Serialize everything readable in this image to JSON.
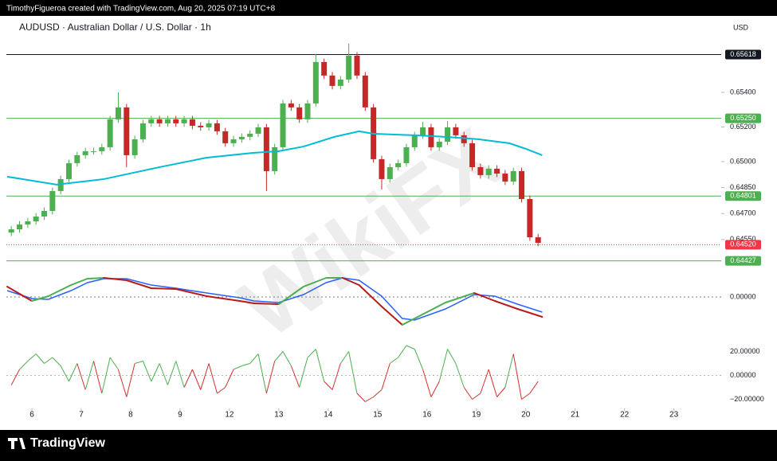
{
  "chart_data": {
    "type": "candlestick",
    "header": "TimothyFigueroa created with TradingView.com, Aug 20, 2025 07:19 UTC+8",
    "title": "AUDUSD · Australian Dollar / U.S. Dollar · 1h",
    "currency": "USD",
    "footer": "TradingView",
    "watermark": "WikiFX",
    "up_color": "#4caf50",
    "down_color": "#c62828",
    "x": [
      -10,
      -6,
      -2,
      2,
      6,
      10,
      14,
      18,
      22,
      26,
      30,
      34,
      38,
      42,
      46,
      50,
      54,
      58,
      62,
      66,
      70,
      74,
      78,
      82,
      86,
      90,
      94,
      98,
      102,
      106,
      110,
      114,
      118,
      122,
      126,
      130,
      134,
      138,
      142,
      146,
      150,
      154,
      158,
      162,
      166,
      170,
      174,
      178,
      182,
      186,
      190,
      194,
      198,
      202,
      206,
      210,
      214,
      218,
      222,
      226,
      230,
      234,
      238,
      242,
      246
    ],
    "open": [
      0.6459,
      0.64609,
      0.64637,
      0.64655,
      0.64683,
      0.64715,
      0.6483,
      0.64899,
      0.64991,
      0.65037,
      0.6506,
      0.6506,
      0.65083,
      0.65244,
      0.65313,
      0.65037,
      0.65129,
      0.65221,
      0.65244,
      0.65221,
      0.65244,
      0.65221,
      0.65244,
      0.65207,
      0.65198,
      0.65221,
      0.65175,
      0.65106,
      0.65129,
      0.65143,
      0.65161,
      0.65198,
      0.64945,
      0.65083,
      0.65336,
      0.65313,
      0.65244,
      0.65336,
      0.65575,
      0.65497,
      0.65437,
      0.65474,
      0.65612,
      0.65497,
      0.65313,
      0.65014,
      0.64899,
      0.64968,
      0.64991,
      0.65083,
      0.65152,
      0.65198,
      0.65083,
      0.65115,
      0.65198,
      0.65152,
      0.65106,
      0.64968,
      0.64922,
      0.64959,
      0.64931,
      0.64885,
      0.64945,
      0.64784,
      0.64563
    ],
    "high": [
      0.64629,
      0.64657,
      0.64675,
      0.64703,
      0.64735,
      0.6485,
      0.64919,
      0.65011,
      0.65057,
      0.6508,
      0.6508,
      0.65103,
      0.65264,
      0.654,
      0.65333,
      0.65149,
      0.65241,
      0.65264,
      0.65264,
      0.65264,
      0.65264,
      0.65264,
      0.65264,
      0.65227,
      0.65241,
      0.65241,
      0.65195,
      0.65149,
      0.65163,
      0.65181,
      0.65218,
      0.65218,
      0.65103,
      0.65356,
      0.65356,
      0.65333,
      0.65356,
      0.65621,
      0.65595,
      0.65517,
      0.65494,
      0.65681,
      0.65632,
      0.65517,
      0.65333,
      0.65034,
      0.64988,
      0.65011,
      0.65103,
      0.65172,
      0.6523,
      0.65218,
      0.65135,
      0.65235,
      0.65218,
      0.65172,
      0.65126,
      0.64988,
      0.64979,
      0.64979,
      0.64951,
      0.64965,
      0.64965,
      0.64804,
      0.64583
    ],
    "low": [
      0.6457,
      0.64589,
      0.64617,
      0.64635,
      0.64663,
      0.64695,
      0.6481,
      0.64879,
      0.64971,
      0.65017,
      0.6504,
      0.6504,
      0.65063,
      0.65224,
      0.64968,
      0.65017,
      0.65109,
      0.65201,
      0.65201,
      0.65201,
      0.65201,
      0.65201,
      0.65187,
      0.65178,
      0.65178,
      0.65155,
      0.65086,
      0.65086,
      0.65109,
      0.65123,
      0.65141,
      0.6483,
      0.64925,
      0.65063,
      0.65293,
      0.65224,
      0.65224,
      0.65316,
      0.65477,
      0.65417,
      0.65417,
      0.65454,
      0.65477,
      0.65293,
      0.64994,
      0.64839,
      0.64879,
      0.64948,
      0.64971,
      0.65063,
      0.65132,
      0.65063,
      0.65063,
      0.65095,
      0.65132,
      0.65086,
      0.64948,
      0.64902,
      0.64902,
      0.64911,
      0.64865,
      0.64865,
      0.64764,
      0.64543,
      0.64511
    ],
    "close": [
      0.64609,
      0.64637,
      0.64655,
      0.64683,
      0.64715,
      0.6483,
      0.64899,
      0.64991,
      0.65037,
      0.6506,
      0.6506,
      0.65083,
      0.65244,
      0.65313,
      0.65037,
      0.65129,
      0.65221,
      0.65244,
      0.65221,
      0.65244,
      0.65221,
      0.65244,
      0.65207,
      0.65198,
      0.65221,
      0.65175,
      0.65106,
      0.65129,
      0.65143,
      0.65161,
      0.65198,
      0.64945,
      0.65083,
      0.65336,
      0.65313,
      0.65244,
      0.65336,
      0.65575,
      0.65497,
      0.65437,
      0.65474,
      0.65612,
      0.65497,
      0.65313,
      0.65014,
      0.64899,
      0.64968,
      0.64991,
      0.65083,
      0.65152,
      0.65198,
      0.65083,
      0.65115,
      0.65198,
      0.65152,
      0.65106,
      0.64968,
      0.64922,
      0.64959,
      0.64931,
      0.64885,
      0.64945,
      0.64784,
      0.64563,
      0.64531
    ],
    "xlim": [
      -12.4,
      335
    ],
    "xticks": [
      {
        "value": 0,
        "label": "6"
      },
      {
        "value": 24,
        "label": "7"
      },
      {
        "value": 48,
        "label": "8"
      },
      {
        "value": 72,
        "label": "9"
      },
      {
        "value": 96,
        "label": "12"
      },
      {
        "value": 120,
        "label": "13"
      },
      {
        "value": 144,
        "label": "14"
      },
      {
        "value": 168,
        "label": "15"
      },
      {
        "value": 192,
        "label": "16"
      },
      {
        "value": 216,
        "label": "19"
      },
      {
        "value": 240,
        "label": "20"
      },
      {
        "value": 264,
        "label": "21"
      },
      {
        "value": 288,
        "label": "22"
      },
      {
        "value": 312,
        "label": "23"
      }
    ],
    "ylim": [
      0.6437,
      0.65832
    ],
    "yticks": [
      {
        "value": 0.6455,
        "label": "0.64550"
      },
      {
        "value": 0.647,
        "label": "0.64700"
      },
      {
        "value": 0.6485,
        "label": "0.64850"
      },
      {
        "value": 0.65,
        "label": "0.65000"
      },
      {
        "value": 0.652,
        "label": "0.65200"
      },
      {
        "value": 0.654,
        "label": "0.65400"
      }
    ],
    "levels": [
      {
        "value": 0.65618,
        "label": "0.65618",
        "color": "#131722",
        "style": "solid"
      },
      {
        "value": 0.6525,
        "label": "0.65250",
        "color": "#4caf50",
        "style": "solid"
      },
      {
        "value": 0.64801,
        "label": "0.64801",
        "color": "#4caf50",
        "style": "solid"
      },
      {
        "value": 0.64427,
        "label": "0.64427",
        "color": "#4caf50",
        "style": "solid"
      },
      {
        "value": 0.6452,
        "label": "0.64520",
        "color": "#f23645",
        "style": "dotted"
      }
    ],
    "ma": {
      "color": "#00bcd4",
      "x": [
        -12,
        12,
        35,
        62,
        85,
        108,
        120,
        132,
        147,
        159,
        166,
        186,
        201,
        217,
        232,
        240,
        248
      ],
      "values": [
        0.64913,
        0.64867,
        0.64899,
        0.64968,
        0.65023,
        0.65051,
        0.6506,
        0.65087,
        0.65143,
        0.65175,
        0.65161,
        0.65152,
        0.65143,
        0.65129,
        0.65106,
        0.65074,
        0.65037
      ]
    },
    "macd": {
      "up_color": "#4caf50",
      "down_color": "#b71c1c",
      "signal_color": "#2962ff",
      "ylim": [
        -0.00094,
        0.00066
      ],
      "yticks": [
        {
          "value": 0,
          "label": "0.00000"
        }
      ],
      "x": [
        -12,
        0,
        8,
        19,
        27,
        35,
        46,
        58,
        70,
        85,
        101,
        108,
        120,
        132,
        143,
        151,
        159,
        170,
        180,
        186,
        201,
        215,
        225,
        236,
        248
      ],
      "macd": [
        0.00026,
        -0.0001,
        2e-05,
        0.0003,
        0.00046,
        0.00048,
        0.00042,
        0.00022,
        0.0002,
        2e-05,
        -0.0001,
        -0.00016,
        -0.00018,
        0.00026,
        0.00048,
        0.00048,
        0.0003,
        -0.00024,
        -0.0007,
        -0.00054,
        -0.00014,
        0.0001,
        -0.0001,
        -0.0003,
        -0.0005
      ],
      "signal": [
        0.00016,
        -4e-05,
        -6e-05,
        0.00016,
        0.00036,
        0.00046,
        0.00046,
        0.0003,
        0.00022,
        0.0001,
        -2e-05,
        -0.0001,
        -0.00014,
        6e-05,
        0.00036,
        0.00048,
        0.00042,
        2e-05,
        -0.00054,
        -0.00058,
        -0.0003,
        6e-05,
        2e-05,
        -0.00018,
        -0.00038
      ]
    },
    "oscillator": {
      "up_color": "#4caf50",
      "down_color": "#d32f2f",
      "ylim": [
        -27,
        31
      ],
      "yticks": [
        {
          "value": 20,
          "label": "20.00000"
        },
        {
          "value": 0,
          "label": "0.00000"
        },
        {
          "value": -20,
          "label": "−20.00000"
        }
      ],
      "values": [
        -8,
        5,
        12,
        18,
        10,
        15,
        8,
        -5,
        10,
        -12,
        12,
        -15,
        15,
        5,
        -18,
        10,
        12,
        -5,
        10,
        -8,
        12,
        -10,
        5,
        -12,
        10,
        -15,
        -10,
        5,
        8,
        10,
        18,
        -15,
        12,
        20,
        8,
        -10,
        15,
        22,
        -5,
        -12,
        10,
        20,
        -15,
        -22,
        -18,
        -12,
        10,
        15,
        25,
        22,
        5,
        -18,
        -5,
        22,
        10,
        -10,
        -20,
        -15,
        5,
        -18,
        -10,
        18,
        -20,
        -15,
        -5
      ]
    }
  }
}
